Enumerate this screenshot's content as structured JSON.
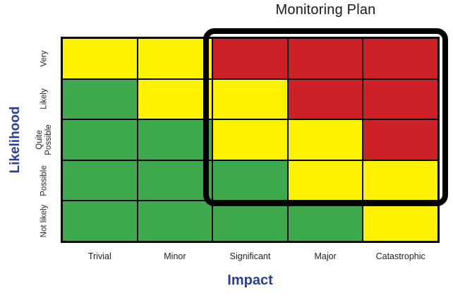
{
  "title": "Monitoring Plan",
  "axes": {
    "y_label": "Likelihood",
    "x_label": "Impact"
  },
  "colors": {
    "low": "#3fa94d",
    "medium": "#fff200",
    "high": "#ce2127",
    "axis_label": "#283da0",
    "grid_line": "#000000",
    "outline": "#000000",
    "title_text": "#1a1a1a"
  },
  "chart_data": {
    "type": "heatmap",
    "title": "Monitoring Plan",
    "xlabel": "Impact",
    "ylabel": "Likelihood",
    "x_categories": [
      "Trivial",
      "Minor",
      "Significant",
      "Major",
      "Catastrophic"
    ],
    "y_categories_top_to_bottom": [
      "Very",
      "Likely",
      "Quite Possible",
      "Possible",
      "Not likely"
    ],
    "cell_levels_by_row": [
      [
        "medium",
        "medium",
        "high",
        "high",
        "high"
      ],
      [
        "low",
        "medium",
        "medium",
        "high",
        "high"
      ],
      [
        "low",
        "low",
        "medium",
        "medium",
        "high"
      ],
      [
        "low",
        "low",
        "low",
        "medium",
        "medium"
      ],
      [
        "low",
        "low",
        "low",
        "low",
        "medium"
      ]
    ],
    "level_colors": {
      "low": "#3fa94d",
      "medium": "#fff200",
      "high": "#ce2127"
    },
    "legend": "none",
    "grid": "on",
    "annotation_box": {
      "label": "Monitoring Plan",
      "columns": [
        "Significant",
        "Major",
        "Catastrophic"
      ],
      "rows": [
        "Very",
        "Likely",
        "Quite Possible",
        "Possible"
      ]
    }
  }
}
